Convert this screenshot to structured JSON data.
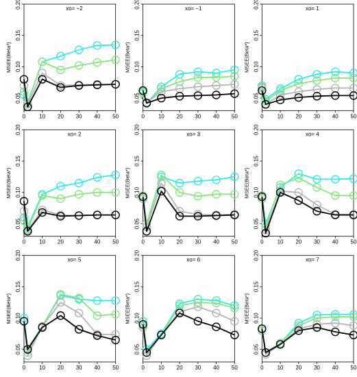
{
  "colors": {
    "cyan": "#33e6f0",
    "lightgreen": "#86e67c",
    "gray": "#b4b4b4",
    "black": "#000000"
  },
  "chart_data": {
    "type": "line",
    "layout": "3x3 grid",
    "ylabel": "MSEE(Beta*)",
    "x": [
      0,
      2,
      10,
      20,
      30,
      40,
      50
    ],
    "xticks": [
      0,
      10,
      20,
      30,
      40,
      50
    ],
    "yticks": [
      0.05,
      0.1,
      0.15,
      0.2
    ],
    "ytick_labels": [
      "0.05",
      "0.10",
      "0.15",
      "0.20"
    ],
    "ylim": [
      0.03,
      0.2
    ],
    "xlim": [
      0,
      50
    ],
    "marker": "open circle",
    "series_colors": [
      "cyan",
      "lightgreen",
      "gray",
      "black"
    ],
    "panels": [
      {
        "title": "xo= −2",
        "series": [
          {
            "values": [
              0.055,
              0.042,
              0.108,
              0.117,
              0.127,
              0.134,
              0.135
            ]
          },
          {
            "values": [
              0.06,
              0.043,
              0.108,
              0.095,
              0.102,
              0.107,
              0.111
            ]
          },
          {
            "values": [
              0.07,
              0.04,
              0.09,
              0.07,
              0.071,
              0.072,
              0.072
            ]
          },
          {
            "values": [
              0.08,
              0.036,
              0.08,
              0.067,
              0.07,
              0.071,
              0.072
            ]
          }
        ]
      },
      {
        "title": "xo= −1",
        "series": [
          {
            "values": [
              0.06,
              0.042,
              0.068,
              0.088,
              0.092,
              0.09,
              0.095
            ]
          },
          {
            "values": [
              0.058,
              0.042,
              0.065,
              0.076,
              0.083,
              0.083,
              0.085
            ]
          },
          {
            "values": [
              0.062,
              0.043,
              0.06,
              0.065,
              0.068,
              0.07,
              0.072
            ]
          },
          {
            "values": [
              0.062,
              0.042,
              0.05,
              0.053,
              0.054,
              0.055,
              0.057
            ]
          }
        ]
      },
      {
        "title": "xo= 1",
        "series": [
          {
            "values": [
              0.068,
              0.048,
              0.065,
              0.08,
              0.088,
              0.092,
              0.09
            ]
          },
          {
            "values": [
              0.07,
              0.045,
              0.062,
              0.073,
              0.078,
              0.082,
              0.082
            ]
          },
          {
            "values": [
              0.066,
              0.04,
              0.055,
              0.06,
              0.064,
              0.066,
              0.066
            ]
          },
          {
            "values": [
              0.062,
              0.04,
              0.047,
              0.051,
              0.053,
              0.054,
              0.054
            ]
          }
        ]
      },
      {
        "title": "xo= 2",
        "series": [
          {
            "values": [
              0.06,
              0.045,
              0.097,
              0.11,
              0.115,
              0.124,
              0.128
            ]
          },
          {
            "values": [
              0.055,
              0.042,
              0.095,
              0.09,
              0.097,
              0.1,
              0.1
            ]
          },
          {
            "values": [
              0.07,
              0.04,
              0.072,
              0.064,
              0.063,
              0.064,
              0.064
            ]
          },
          {
            "values": [
              0.086,
              0.038,
              0.068,
              0.062,
              0.063,
              0.064,
              0.064
            ]
          }
        ]
      },
      {
        "title": "xo= 3",
        "series": [
          {
            "values": [
              0.09,
              0.05,
              0.125,
              0.115,
              0.118,
              0.12,
              0.125
            ]
          },
          {
            "values": [
              0.095,
              0.05,
              0.128,
              0.1,
              0.094,
              0.097,
              0.097
            ]
          },
          {
            "values": [
              0.09,
              0.045,
              0.115,
              0.07,
              0.065,
              0.064,
              0.065
            ]
          },
          {
            "values": [
              0.093,
              0.038,
              0.102,
              0.062,
              0.062,
              0.063,
              0.064
            ]
          }
        ]
      },
      {
        "title": "xo= 4",
        "series": [
          {
            "values": [
              0.095,
              0.05,
              0.108,
              0.13,
              0.121,
              0.121,
              0.122
            ]
          },
          {
            "values": [
              0.09,
              0.045,
              0.112,
              0.123,
              0.108,
              0.095,
              0.095
            ]
          },
          {
            "values": [
              0.095,
              0.04,
              0.102,
              0.1,
              0.08,
              0.065,
              0.065
            ]
          },
          {
            "values": [
              0.093,
              0.035,
              0.1,
              0.087,
              0.07,
              0.064,
              0.064
            ]
          }
        ]
      },
      {
        "title": "xo= 5",
        "series": [
          {
            "values": [
              0.1,
              0.05,
              0.087,
              0.136,
              0.13,
              0.128,
              0.128
            ]
          },
          {
            "values": [
              0.095,
              0.045,
              0.087,
              0.138,
              0.132,
              0.104,
              0.106
            ]
          },
          {
            "values": [
              0.095,
              0.04,
              0.087,
              0.125,
              0.108,
              0.074,
              0.074
            ]
          },
          {
            "values": [
              0.095,
              0.05,
              0.085,
              0.104,
              0.082,
              0.072,
              0.065
            ]
          }
        ]
      },
      {
        "title": "xo= 6",
        "series": [
          {
            "values": [
              0.095,
              0.05,
              0.075,
              0.123,
              0.13,
              0.128,
              0.12
            ]
          },
          {
            "values": [
              0.088,
              0.045,
              0.073,
              0.12,
              0.125,
              0.124,
              0.116
            ]
          },
          {
            "values": [
              0.085,
              0.04,
              0.073,
              0.11,
              0.118,
              0.108,
              0.095
            ]
          },
          {
            "values": [
              0.09,
              0.045,
              0.073,
              0.108,
              0.095,
              0.086,
              0.073
            ]
          }
        ]
      },
      {
        "title": "xo= 7",
        "series": [
          {
            "values": [
              0.08,
              0.045,
              0.06,
              0.092,
              0.105,
              0.106,
              0.106
            ]
          },
          {
            "values": [
              0.08,
              0.045,
              0.06,
              0.088,
              0.1,
              0.102,
              0.102
            ]
          },
          {
            "values": [
              0.083,
              0.042,
              0.058,
              0.083,
              0.09,
              0.092,
              0.088
            ]
          },
          {
            "values": [
              0.083,
              0.045,
              0.058,
              0.08,
              0.085,
              0.078,
              0.073
            ]
          }
        ]
      }
    ]
  }
}
